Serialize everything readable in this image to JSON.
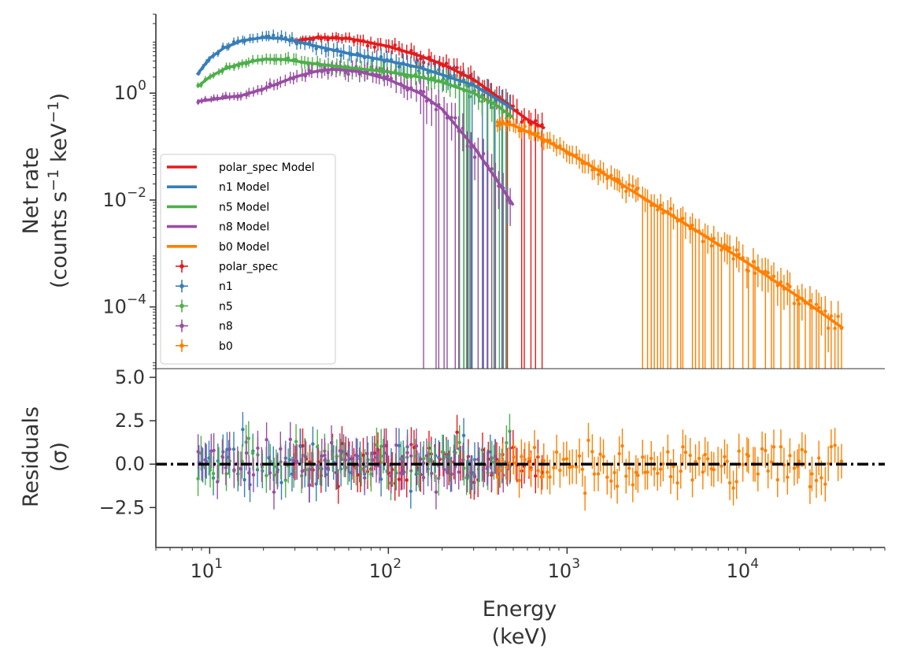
{
  "chart_data": [
    {
      "type": "scatter",
      "panel": "spectrum",
      "ylabel": "Net rate",
      "ylabel_units": "(counts s",
      "ylabel_units_sup1": "−1",
      "ylabel_units_mid": " keV",
      "ylabel_units_sup2": "−1",
      "ylabel_units_end": ")",
      "xscale": "log",
      "yscale": "log",
      "xlim": [
        5,
        60000
      ],
      "ylim": [
        7e-06,
        30
      ],
      "yticks": [
        {
          "value": 0.0001,
          "base": "10",
          "exp": "−4"
        },
        {
          "value": 0.01,
          "base": "10",
          "exp": "−2"
        },
        {
          "value": 1,
          "base": "10",
          "exp": "0"
        }
      ],
      "legend_location": "lower-left",
      "legend": [
        {
          "label": "polar_spec Model",
          "kind": "line",
          "color": "#e41a1c"
        },
        {
          "label": "n1 Model",
          "kind": "line",
          "color": "#377eb8"
        },
        {
          "label": "n5 Model",
          "kind": "line",
          "color": "#4daf4a"
        },
        {
          "label": "n8 Model",
          "kind": "line",
          "color": "#984ea3"
        },
        {
          "label": "b0 Model",
          "kind": "line",
          "color": "#ff7f00"
        },
        {
          "label": "polar_spec",
          "kind": "marker",
          "color": "#e41a1c"
        },
        {
          "label": "n1",
          "kind": "marker",
          "color": "#377eb8"
        },
        {
          "label": "n5",
          "kind": "marker",
          "color": "#4daf4a"
        },
        {
          "label": "n8",
          "kind": "marker",
          "color": "#984ea3"
        },
        {
          "label": "b0",
          "kind": "marker",
          "color": "#ff7f00"
        }
      ],
      "series": [
        {
          "name": "polar_spec Model",
          "color": "#e41a1c",
          "x": [
            30,
            40,
            60,
            100,
            150,
            200,
            300,
            400,
            500,
            600,
            750
          ],
          "y": [
            9.5,
            11,
            10.5,
            7.5,
            5,
            3.5,
            1.8,
            0.9,
            0.5,
            0.32,
            0.22
          ]
        },
        {
          "name": "n1 Model",
          "color": "#377eb8",
          "x": [
            8.5,
            10,
            12,
            15,
            20,
            25,
            30,
            40,
            60,
            100,
            150,
            200,
            300,
            400,
            500
          ],
          "y": [
            2.2,
            4.5,
            7,
            9.5,
            11,
            10.5,
            9.5,
            7.5,
            5.5,
            4,
            3,
            2.2,
            1.4,
            0.8,
            0.5
          ]
        },
        {
          "name": "n5 Model",
          "color": "#4daf4a",
          "x": [
            8.5,
            10,
            12,
            15,
            20,
            25,
            30,
            40,
            60,
            100,
            150,
            200,
            300,
            400,
            500
          ],
          "y": [
            1.3,
            2,
            2.8,
            3.6,
            4.3,
            4.3,
            4,
            3.5,
            3,
            2.5,
            2,
            1.6,
            1,
            0.6,
            0.35
          ]
        },
        {
          "name": "n8 Model",
          "color": "#984ea3",
          "x": [
            8.5,
            10,
            15,
            20,
            30,
            40,
            50,
            70,
            100,
            150,
            200,
            300,
            400,
            500
          ],
          "y": [
            0.7,
            0.75,
            0.9,
            1.2,
            2,
            2.6,
            2.8,
            2.5,
            1.8,
            1,
            0.5,
            0.1,
            0.025,
            0.008
          ]
        },
        {
          "name": "b0 Model",
          "color": "#ff7f00",
          "x": [
            400,
            500,
            700,
            1000,
            2000,
            5000,
            10000,
            20000,
            35000
          ],
          "y": [
            0.29,
            0.25,
            0.15,
            0.08,
            0.02,
            0.003,
            0.0007,
            0.00015,
            4e-05
          ]
        }
      ],
      "scatter_series": [
        {
          "name": "polar_spec",
          "color": "#e41a1c",
          "x_range": [
            30,
            750
          ],
          "count": 70
        },
        {
          "name": "n1",
          "color": "#377eb8",
          "x_range": [
            8.5,
            500
          ],
          "count": 80
        },
        {
          "name": "n5",
          "color": "#4daf4a",
          "x_range": [
            8.5,
            500
          ],
          "count": 80
        },
        {
          "name": "n8",
          "color": "#984ea3",
          "x_range": [
            8.5,
            500
          ],
          "count": 80
        },
        {
          "name": "b0",
          "color": "#ff7f00",
          "x_range": [
            400,
            35000
          ],
          "count": 110
        }
      ]
    },
    {
      "type": "scatter",
      "panel": "residuals",
      "ylabel": "Residuals",
      "ylabel_units": "(σ)",
      "xlabel": "Energy",
      "xlabel_units": "(keV)",
      "xscale": "log",
      "xlim": [
        5,
        60000
      ],
      "ylim": [
        -4.8,
        5.5
      ],
      "yticks": [
        {
          "value": 5.0,
          "label": "5.0"
        },
        {
          "value": 2.5,
          "label": "2.5"
        },
        {
          "value": 0.0,
          "label": "0.0"
        },
        {
          "value": -2.5,
          "label": "−2.5"
        }
      ],
      "xticks": [
        {
          "value": 10,
          "base": "10",
          "exp": "1"
        },
        {
          "value": 100,
          "base": "10",
          "exp": "2"
        },
        {
          "value": 1000,
          "base": "10",
          "exp": "3"
        },
        {
          "value": 10000,
          "base": "10",
          "exp": "4"
        }
      ],
      "zero_line_color": "#000000"
    }
  ]
}
